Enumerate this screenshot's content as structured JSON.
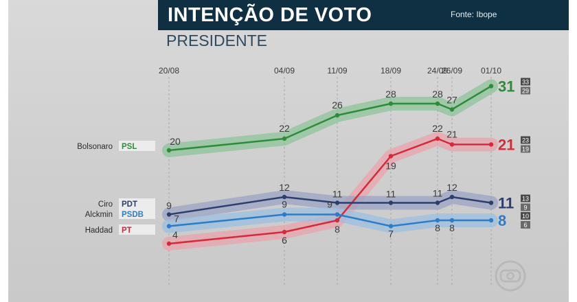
{
  "header": {
    "title": "INTENÇÃO DE VOTO",
    "subtitle": "PRESIDENTE",
    "source": "Fonte: Ibope"
  },
  "chart_data": {
    "type": "line",
    "title": "INTENÇÃO DE VOTO",
    "subtitle": "PRESIDENTE",
    "x": [
      "20/08",
      "04/09",
      "11/09",
      "18/09",
      "24/09",
      "26/09",
      "01/10"
    ],
    "y_range": [
      0,
      35
    ],
    "grid": "vertical dashed lines at each date",
    "legend": "left, candidate name with party",
    "series": [
      {
        "name": "Bolsonaro",
        "party": "PSL",
        "color": "#2e8b3a",
        "band_color": "#8cc49a",
        "values": [
          20,
          22,
          26,
          28,
          28,
          27,
          31
        ],
        "final": "31",
        "range": [
          "33",
          "29"
        ]
      },
      {
        "name": "Haddad",
        "party": "PT",
        "color": "#d42a3a",
        "band_color": "#e9a3ab",
        "values": [
          4,
          6,
          8,
          19,
          22,
          21,
          21
        ],
        "final": "21",
        "range": [
          "23",
          "19"
        ]
      },
      {
        "name": "Ciro",
        "party": "PDT",
        "color": "#2c3e6e",
        "band_color": "#9aa3c2",
        "values": [
          9,
          12,
          11,
          11,
          11,
          12,
          11
        ],
        "final": "11",
        "range": [
          "13",
          "9"
        ]
      },
      {
        "name": "Alckmin",
        "party": "PSDB",
        "color": "#2d7cc7",
        "band_color": "#9bbfe0",
        "values": [
          7,
          9,
          9,
          7,
          8,
          8,
          8
        ],
        "final": "8",
        "range": [
          "10",
          "6"
        ]
      }
    ]
  }
}
